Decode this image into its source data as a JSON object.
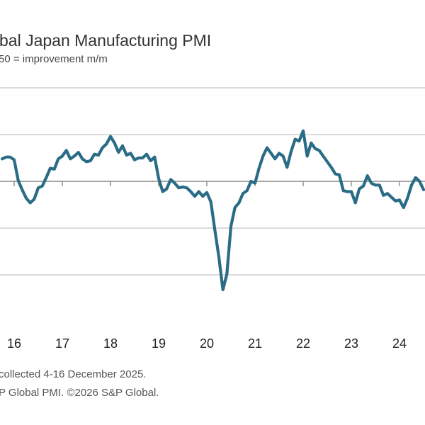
{
  "title": "bal Japan Manufacturing PMI",
  "subtitle": "50 = improvement m/m",
  "footer": {
    "line1": "collected 4-16 December 2025.",
    "line2": "P Global PMI. ©2026 S&P Global."
  },
  "colors": {
    "series": "#2a6c86",
    "grid": "#cfcfcf",
    "baseline": "#8a8a8a"
  },
  "chart_data": {
    "type": "line",
    "title": "bal Japan Manufacturing PMI",
    "subtitle": "50 = improvement m/m",
    "xlabel": "",
    "ylabel": "",
    "ylim": [
      35,
      60
    ],
    "y_gridlines": [
      40,
      45,
      50,
      55,
      60
    ],
    "baseline": 50,
    "grid": true,
    "x_tick_labels": [
      "16",
      "17",
      "18",
      "19",
      "20",
      "21",
      "22",
      "23",
      "24"
    ],
    "x_tick_dates": [
      "2016-01",
      "2017-01",
      "2018-01",
      "2019-01",
      "2020-01",
      "2021-01",
      "2022-01",
      "2023-01",
      "2024-01"
    ],
    "start": "2015-10",
    "values": [
      52.4,
      52.6,
      52.6,
      52.3,
      50.1,
      49.1,
      48.2,
      47.7,
      48.1,
      49.3,
      49.5,
      50.4,
      51.4,
      51.3,
      52.4,
      52.7,
      53.3,
      52.4,
      52.7,
      53.1,
      52.4,
      52.1,
      52.2,
      52.9,
      52.8,
      53.6,
      54.0,
      54.8,
      54.1,
      53.1,
      53.8,
      52.8,
      53.0,
      52.3,
      52.5,
      52.5,
      52.9,
      52.2,
      52.6,
      50.3,
      48.9,
      49.2,
      50.2,
      49.8,
      49.3,
      49.4,
      49.3,
      48.9,
      48.4,
      48.9,
      48.4,
      48.8,
      47.8,
      44.8,
      41.9,
      38.4,
      40.1,
      45.2,
      47.2,
      47.7,
      48.7,
      49.0,
      50.0,
      49.8,
      51.4,
      52.7,
      53.6,
      53.0,
      52.4,
      53.0,
      52.7,
      51.5,
      53.2,
      54.5,
      54.3,
      55.4,
      52.7,
      54.1,
      53.5,
      53.3,
      52.7,
      52.1,
      51.5,
      50.8,
      50.7,
      49.0,
      48.9,
      48.9,
      47.7,
      49.2,
      49.5,
      50.6,
      49.8,
      49.6,
      49.6,
      48.5,
      48.7,
      48.3,
      47.9,
      48.0,
      47.2,
      48.2,
      49.6,
      50.4,
      50.0,
      49.1
    ]
  }
}
